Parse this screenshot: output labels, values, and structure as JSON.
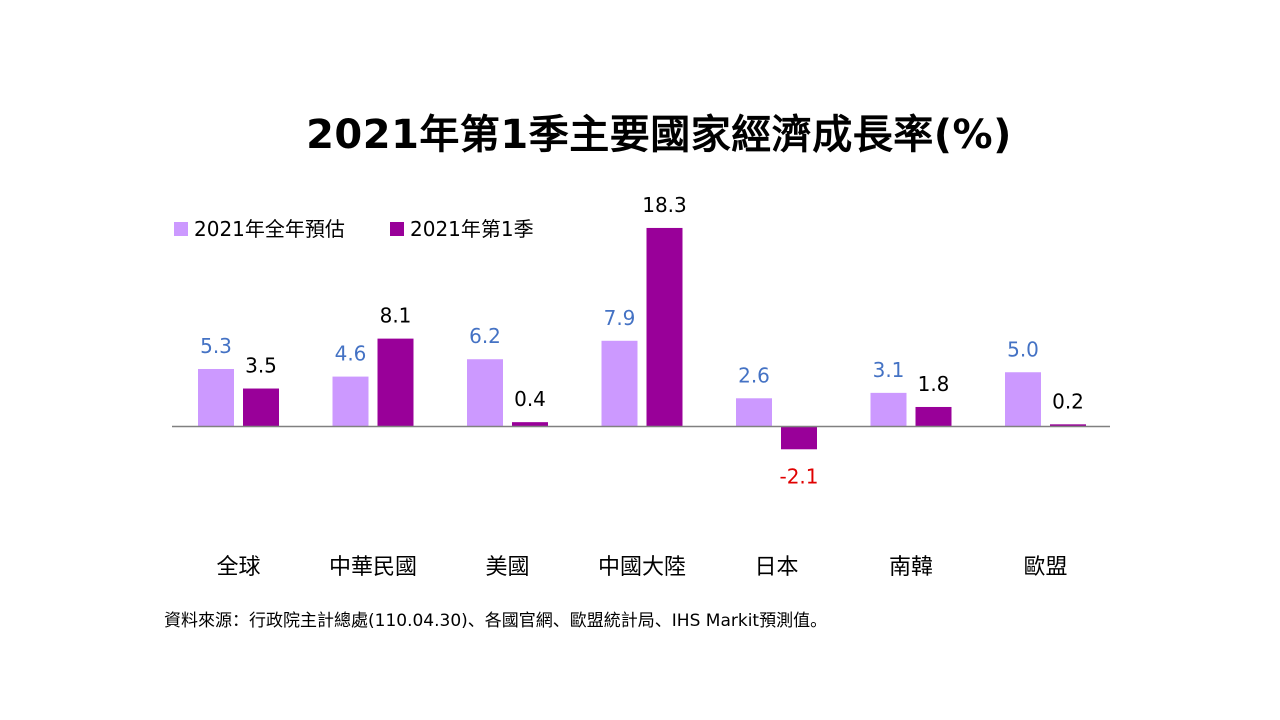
{
  "chart_data": {
    "type": "bar",
    "title": "2021年第1季主要國家經濟成長率(%)",
    "categories": [
      "全球",
      "中華民國",
      "美國",
      "中國大陸",
      "日本",
      "南韓",
      "歐盟"
    ],
    "series": [
      {
        "name": "2021年全年預估",
        "color": "#CC99FF",
        "label_color": "#4472C4",
        "values": [
          5.3,
          4.6,
          6.2,
          7.9,
          2.6,
          3.1,
          5.0
        ]
      },
      {
        "name": "2021年第1季",
        "color": "#990099",
        "label_color": "#000000",
        "negative_label_color": "#E00000",
        "values": [
          3.5,
          8.1,
          0.4,
          18.3,
          -2.1,
          1.8,
          0.2
        ]
      }
    ],
    "grid": false,
    "legend_position": "top-left",
    "axis_color": "#808080"
  },
  "source": "資料來源：行政院主計總處(110.04.30)、各國官網、歐盟統計局、IHS  Markit預測值。"
}
